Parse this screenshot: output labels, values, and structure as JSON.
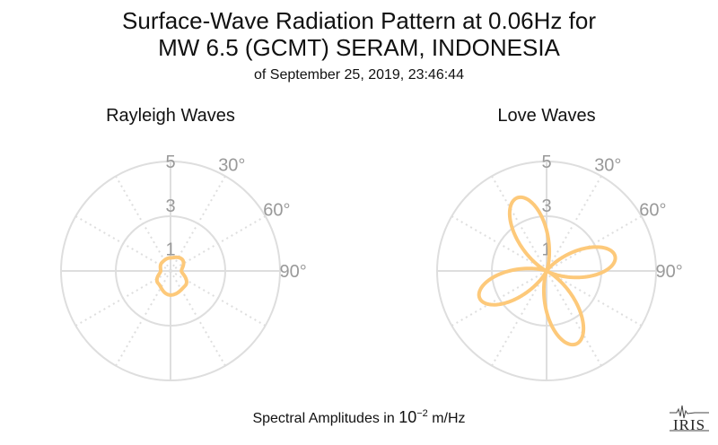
{
  "title_line1": "Surface-Wave Radiation Pattern at 0.06Hz for",
  "title_line2": "MW 6.5 (GCMT) SERAM, INDONESIA",
  "title_line3": "of September 25, 2019, 23:46:44",
  "footer_prefix": "Spectral Amplitudes in ",
  "footer_base": "10",
  "footer_exponent": "−2",
  "footer_unit": " m/Hz",
  "logo_text": "IRIS",
  "colors": {
    "curve": "#fdc97a",
    "grid": "#dedede",
    "tick_label": "#999999"
  },
  "chart_data": [
    {
      "type": "polar-line",
      "title": "Rayleigh Waves",
      "radial_range": [
        0,
        5
      ],
      "radial_tick_labels": [
        "1",
        "3",
        "5"
      ],
      "angular_tick_labels": [
        "30°",
        "60°",
        "90°"
      ],
      "angular_grid_step_deg": 30,
      "pattern": {
        "model": "two-lobe",
        "theta_deg": [
          0,
          45,
          90,
          135,
          180,
          225,
          270,
          315
        ],
        "r": [
          0.6,
          0.75,
          0.5,
          0.95,
          1.1,
          0.8,
          0.45,
          0.55
        ]
      }
    },
    {
      "type": "polar-line",
      "title": "Love Waves",
      "radial_range": [
        0,
        5
      ],
      "radial_tick_labels": [
        "1",
        "3",
        "5"
      ],
      "angular_tick_labels": [
        "30°",
        "60°",
        "90°"
      ],
      "angular_grid_step_deg": 30,
      "lobes": [
        {
          "azimuth_deg": 338,
          "peak": 3.6
        },
        {
          "azimuth_deg": 78,
          "peak": 3.2
        },
        {
          "azimuth_deg": 158,
          "peak": 3.6
        },
        {
          "azimuth_deg": 248,
          "peak": 3.3
        }
      ]
    }
  ]
}
